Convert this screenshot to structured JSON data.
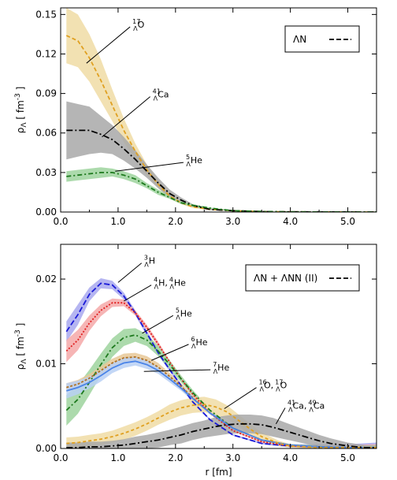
{
  "chart_data": [
    {
      "type": "line",
      "panel": "top",
      "xlabel": "",
      "ylabel": "ρ_Λ [fm^-3]",
      "xlim": [
        0,
        5.5
      ],
      "ylim": [
        0,
        0.155
      ],
      "x_ticks": [
        "0.0",
        "1.0",
        "2.0",
        "3.0",
        "4.0",
        "5.0"
      ],
      "y_ticks": [
        "0.00",
        "0.03",
        "0.06",
        "0.09",
        "0.12",
        "0.15"
      ],
      "legend": {
        "label": "ΛN",
        "placement": "top-right"
      },
      "series": [
        {
          "name": "17ΛO",
          "label_pre": "17",
          "label_sub": "Λ",
          "label_main": "O",
          "line_color": "#e0a020",
          "band_color": "#f0dca4",
          "dash": "5,3",
          "x": [
            0.1,
            0.3,
            0.5,
            0.7,
            0.9,
            1.1,
            1.3,
            1.5,
            1.7,
            1.9,
            2.1,
            2.3,
            2.6,
            3.0,
            3.5,
            4.0,
            5.5
          ],
          "y": [
            0.134,
            0.13,
            0.117,
            0.1,
            0.081,
            0.062,
            0.046,
            0.032,
            0.021,
            0.012,
            0.007,
            0.004,
            0.002,
            0.001,
            0.0003,
            0.0001,
            0.0
          ],
          "err": [
            0.021,
            0.02,
            0.018,
            0.016,
            0.012,
            0.009,
            0.006,
            0.004,
            0.003,
            0.002,
            0.001,
            0.001,
            0.0005,
            0.0003,
            0.0002,
            0.0001,
            0.0
          ]
        },
        {
          "name": "41ΛCa",
          "label_pre": "41",
          "label_sub": "Λ",
          "label_main": "Ca",
          "line_color": "#000000",
          "band_color": "#a8a8a8",
          "dash": "8,3,2,3",
          "x": [
            0.1,
            0.3,
            0.5,
            0.7,
            0.9,
            1.1,
            1.3,
            1.5,
            1.7,
            1.9,
            2.1,
            2.3,
            2.6,
            3.0,
            3.5,
            4.0,
            5.5
          ],
          "y": [
            0.062,
            0.062,
            0.062,
            0.059,
            0.055,
            0.048,
            0.04,
            0.031,
            0.022,
            0.014,
            0.009,
            0.005,
            0.002,
            0.001,
            0.0003,
            0.0001,
            0.0
          ],
          "err": [
            0.022,
            0.02,
            0.018,
            0.014,
            0.011,
            0.009,
            0.007,
            0.005,
            0.004,
            0.003,
            0.002,
            0.001,
            0.0006,
            0.0003,
            0.0002,
            0.0001,
            0.0
          ]
        },
        {
          "name": "5ΛHe",
          "label_pre": "5",
          "label_sub": "Λ",
          "label_main": "He",
          "line_color": "#1e7a1e",
          "band_color": "#9ed49e",
          "dash": "6,3,2,3",
          "x": [
            0.1,
            0.3,
            0.5,
            0.7,
            0.9,
            1.1,
            1.3,
            1.5,
            1.7,
            1.9,
            2.1,
            2.3,
            2.6,
            3.0,
            3.5,
            4.0,
            5.5
          ],
          "y": [
            0.027,
            0.028,
            0.029,
            0.03,
            0.03,
            0.028,
            0.025,
            0.02,
            0.015,
            0.011,
            0.007,
            0.005,
            0.003,
            0.001,
            0.0004,
            0.0001,
            0.0
          ],
          "err": [
            0.004,
            0.004,
            0.004,
            0.004,
            0.003,
            0.003,
            0.003,
            0.002,
            0.002,
            0.001,
            0.001,
            0.001,
            0.0005,
            0.0003,
            0.0002,
            0.0001,
            0.0
          ]
        }
      ],
      "annotations": [
        {
          "series": 0,
          "label_pos": [
            1.25,
            0.14
          ],
          "tip": [
            0.45,
            0.113
          ]
        },
        {
          "series": 1,
          "label_pos": [
            1.6,
            0.087
          ],
          "tip": [
            0.72,
            0.057
          ]
        },
        {
          "series": 2,
          "label_pos": [
            2.18,
            0.037
          ],
          "tip": [
            0.95,
            0.031
          ]
        }
      ]
    },
    {
      "type": "line",
      "panel": "bottom",
      "xlabel": "r [fm]",
      "ylabel": "ρ_Λ [fm^-3]",
      "xlim": [
        0,
        5.5
      ],
      "ylim": [
        0,
        0.0241
      ],
      "x_ticks": [
        "0.0",
        "1.0",
        "2.0",
        "3.0",
        "4.0",
        "5.0"
      ],
      "y_ticks": [
        "0.00",
        "0.01",
        "0.02"
      ],
      "legend": {
        "label": "ΛN + ΛNN (II)",
        "placement": "top-right"
      },
      "series": [
        {
          "name": "3ΛH",
          "label_pre": "3",
          "label_sub": "Λ",
          "label_main": "H",
          "line_color": "#1a1ad8",
          "band_color": "#a8a8ee",
          "dash": "7,3",
          "x": [
            0.1,
            0.3,
            0.5,
            0.7,
            0.9,
            1.1,
            1.3,
            1.5,
            1.7,
            1.9,
            2.1,
            2.3,
            2.6,
            3.0,
            3.5,
            4.0,
            4.5,
            5.0,
            5.5
          ],
          "y": [
            0.0138,
            0.0158,
            0.0182,
            0.0195,
            0.0193,
            0.018,
            0.016,
            0.0136,
            0.0113,
            0.0093,
            0.0074,
            0.0055,
            0.0034,
            0.0016,
            0.0006,
            0.0003,
            0.0002,
            0.0001,
            0.0001
          ],
          "err": [
            0.0012,
            0.0012,
            0.0008,
            0.0006,
            0.0005,
            0.0004,
            0.0003,
            0.0003,
            0.0003,
            0.0002,
            0.0002,
            0.0002,
            0.0001,
            0.0001,
            0.0001,
            0.0002,
            0.0003,
            0.0004,
            0.0006
          ]
        },
        {
          "name": "4ΛH, 4ΛHe",
          "label_pre": "4",
          "label_sub": "Λ",
          "label_main": "H,  ",
          "label2_pre": "4",
          "label2_sub": "Λ",
          "label2_main": "He",
          "line_color": "#e02020",
          "band_color": "#f4a8a8",
          "dash": "2,2",
          "x": [
            0.1,
            0.3,
            0.5,
            0.7,
            0.9,
            1.1,
            1.3,
            1.5,
            1.7,
            1.9,
            2.1,
            2.3,
            2.6,
            3.0,
            3.5,
            4.0,
            4.5,
            5.0,
            5.5
          ],
          "y": [
            0.0115,
            0.0128,
            0.0148,
            0.0163,
            0.0172,
            0.0172,
            0.016,
            0.0143,
            0.0123,
            0.0102,
            0.0082,
            0.0064,
            0.0042,
            0.0021,
            0.0008,
            0.0003,
            0.0002,
            0.0001,
            0.0001
          ],
          "err": [
            0.0013,
            0.0012,
            0.0009,
            0.0007,
            0.0005,
            0.0004,
            0.0003,
            0.0003,
            0.0003,
            0.0002,
            0.0002,
            0.0002,
            0.0001,
            0.0001,
            0.0001,
            0.0001,
            0.0002,
            0.0003,
            0.0004
          ]
        },
        {
          "name": "5ΛHe",
          "label_pre": "5",
          "label_sub": "Λ",
          "label_main": "He",
          "line_color": "#1e7a1e",
          "band_color": "#9ed49e",
          "dash": "6,3,2,3",
          "x": [
            0.1,
            0.3,
            0.5,
            0.7,
            0.9,
            1.1,
            1.3,
            1.5,
            1.7,
            1.9,
            2.1,
            2.3,
            2.6,
            3.0,
            3.5,
            4.0,
            4.5,
            5.0,
            5.5
          ],
          "y": [
            0.0045,
            0.0058,
            0.0078,
            0.0099,
            0.0119,
            0.0131,
            0.0134,
            0.0128,
            0.0115,
            0.0099,
            0.0082,
            0.0066,
            0.0045,
            0.0024,
            0.001,
            0.0004,
            0.0002,
            0.0001,
            0.0001
          ],
          "err": [
            0.0018,
            0.0017,
            0.0015,
            0.0013,
            0.0011,
            0.001,
            0.0008,
            0.0007,
            0.0006,
            0.0005,
            0.0004,
            0.0003,
            0.0002,
            0.0001,
            0.0001,
            0.0001,
            0.0002,
            0.0002,
            0.0003
          ]
        },
        {
          "name": "6ΛHe",
          "label_pre": "6",
          "label_sub": "Λ",
          "label_main": "He",
          "line_color": "#b07020",
          "band_color": "#e8c898",
          "dash": "3,2",
          "x": [
            0.1,
            0.3,
            0.5,
            0.7,
            0.9,
            1.1,
            1.3,
            1.5,
            1.7,
            1.9,
            2.1,
            2.3,
            2.6,
            3.0,
            3.5,
            4.0,
            4.5,
            5.0,
            5.5
          ],
          "y": [
            0.0072,
            0.0076,
            0.0083,
            0.0092,
            0.0101,
            0.0107,
            0.0108,
            0.0104,
            0.0096,
            0.0085,
            0.0073,
            0.006,
            0.0042,
            0.0024,
            0.001,
            0.0004,
            0.0002,
            0.0001,
            0.0001
          ],
          "err": [
            0.0005,
            0.0005,
            0.0005,
            0.0005,
            0.0005,
            0.0005,
            0.0005,
            0.0005,
            0.0005,
            0.0004,
            0.0004,
            0.0003,
            0.0002,
            0.0001,
            0.0001,
            0.0001,
            0.0001,
            0.0001,
            0.0001
          ]
        },
        {
          "name": "7ΛHe",
          "label_pre": "7",
          "label_sub": "Λ",
          "label_main": "He",
          "line_color": "#4a84e8",
          "band_color": "#b8d0f4",
          "dash": "",
          "x": [
            0.1,
            0.3,
            0.5,
            0.7,
            0.9,
            1.1,
            1.3,
            1.5,
            1.7,
            1.9,
            2.1,
            2.3,
            2.6,
            3.0,
            3.5,
            4.0,
            4.5,
            5.0,
            5.5
          ],
          "y": [
            0.0068,
            0.0072,
            0.0078,
            0.0086,
            0.0095,
            0.0101,
            0.0103,
            0.0099,
            0.0092,
            0.0082,
            0.0071,
            0.0059,
            0.0042,
            0.0024,
            0.001,
            0.0004,
            0.0002,
            0.0001,
            0.0001
          ],
          "err": [
            0.0009,
            0.0008,
            0.0007,
            0.0007,
            0.0006,
            0.0006,
            0.0005,
            0.0005,
            0.0004,
            0.0004,
            0.0003,
            0.0003,
            0.0002,
            0.0001,
            0.0001,
            0.0001,
            0.0001,
            0.0001,
            0.0001
          ]
        },
        {
          "name": "16ΛO, 17ΛO",
          "label_pre": "16",
          "label_sub": "Λ",
          "label_main": "O,  ",
          "label2_pre": "17",
          "label2_sub": "Λ",
          "label2_main": "O",
          "line_color": "#e0a020",
          "band_color": "#f0dca4",
          "dash": "4,3",
          "x": [
            0.1,
            0.3,
            0.5,
            0.7,
            0.9,
            1.1,
            1.3,
            1.5,
            1.7,
            1.9,
            2.1,
            2.3,
            2.5,
            2.7,
            2.9,
            3.1,
            3.3,
            3.5,
            3.8,
            4.0,
            4.5,
            5.0,
            5.5
          ],
          "y": [
            0.0006,
            0.0007,
            0.0009,
            0.0011,
            0.0014,
            0.0018,
            0.0023,
            0.0029,
            0.0036,
            0.0043,
            0.0048,
            0.0051,
            0.0052,
            0.0049,
            0.0043,
            0.0033,
            0.0023,
            0.0014,
            0.0006,
            0.0003,
            0.0001,
            0.0001,
            0.0001
          ],
          "err": [
            0.0007,
            0.0007,
            0.0007,
            0.0007,
            0.0007,
            0.0008,
            0.0008,
            0.0008,
            0.0008,
            0.0009,
            0.0009,
            0.0009,
            0.0009,
            0.0009,
            0.0008,
            0.0007,
            0.0006,
            0.0005,
            0.0003,
            0.0002,
            0.0001,
            0.0001,
            0.0001
          ]
        },
        {
          "name": "41ΛCa, 49ΛCa",
          "label_pre": "41",
          "label_sub": "Λ",
          "label_main": "Ca,  ",
          "label2_pre": "49",
          "label2_sub": "Λ",
          "label2_main": "Ca",
          "line_color": "#000000",
          "band_color": "#a8a8a8",
          "dash": "8,3,2,3",
          "x": [
            0.1,
            0.3,
            0.5,
            0.7,
            0.9,
            1.1,
            1.3,
            1.5,
            1.7,
            1.9,
            2.1,
            2.3,
            2.5,
            2.7,
            2.9,
            3.1,
            3.3,
            3.5,
            3.7,
            3.9,
            4.1,
            4.3,
            4.5,
            4.7,
            5.0,
            5.3,
            5.5
          ],
          "y": [
            0.0001,
            0.0001,
            0.0002,
            0.0002,
            0.0003,
            0.0004,
            0.0006,
            0.0008,
            0.001,
            0.0013,
            0.0016,
            0.002,
            0.0023,
            0.0026,
            0.0028,
            0.0029,
            0.0029,
            0.0028,
            0.0025,
            0.0021,
            0.0017,
            0.0013,
            0.0009,
            0.0006,
            0.0003,
            0.0001,
            0.0001
          ],
          "err": [
            0.0006,
            0.0006,
            0.0006,
            0.0006,
            0.0006,
            0.0007,
            0.0008,
            0.0008,
            0.0009,
            0.0009,
            0.001,
            0.001,
            0.001,
            0.0011,
            0.0011,
            0.0011,
            0.0011,
            0.0011,
            0.0011,
            0.001,
            0.0009,
            0.0008,
            0.0007,
            0.0006,
            0.0004,
            0.0003,
            0.0002
          ]
        }
      ],
      "annotations": [
        {
          "series": 0,
          "label_pos": [
            1.45,
            0.0218
          ],
          "tip": [
            1.0,
            0.0196
          ]
        },
        {
          "series": 1,
          "label_pos": [
            1.62,
            0.0192
          ],
          "tip": [
            1.1,
            0.0174
          ]
        },
        {
          "series": 2,
          "label_pos": [
            2.0,
            0.0156
          ],
          "tip": [
            1.42,
            0.0136
          ]
        },
        {
          "series": 3,
          "label_pos": [
            2.27,
            0.0122
          ],
          "tip": [
            1.58,
            0.0104
          ]
        },
        {
          "series": 4,
          "label_pos": [
            2.65,
            0.0092
          ],
          "tip": [
            1.45,
            0.0091
          ]
        },
        {
          "series": 5,
          "label_pos": [
            3.45,
            0.0071
          ],
          "tip": [
            2.85,
            0.0047
          ]
        },
        {
          "series": 6,
          "label_pos": [
            3.95,
            0.0047
          ],
          "tip": [
            3.75,
            0.0029
          ]
        }
      ]
    }
  ]
}
